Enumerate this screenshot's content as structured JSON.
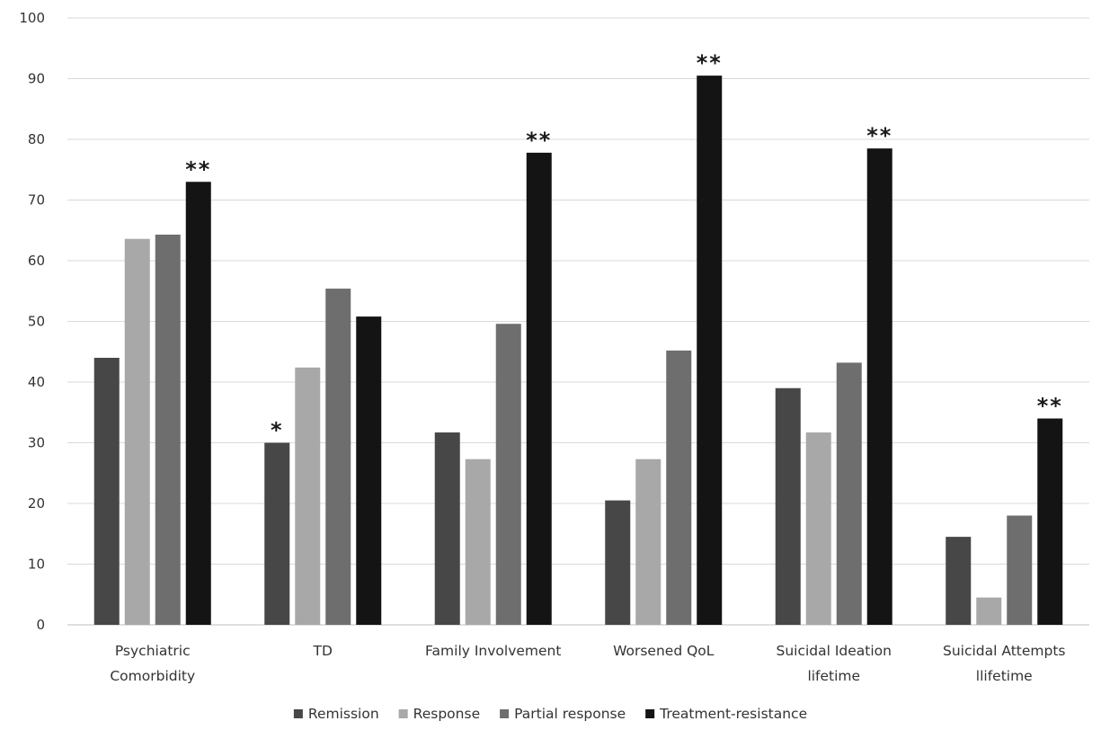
{
  "chart_data": {
    "type": "bar",
    "title": "",
    "xlabel": "",
    "ylabel": "",
    "ylim": [
      0,
      100
    ],
    "yticks": [
      0,
      10,
      20,
      30,
      40,
      50,
      60,
      70,
      80,
      90,
      100
    ],
    "grid": true,
    "legend_position": "bottom",
    "categories": [
      [
        "Psychiatric",
        "Comorbidity"
      ],
      [
        "TD"
      ],
      [
        "Family Involvement"
      ],
      [
        "Worsened QoL"
      ],
      [
        "Suicidal Ideation",
        "lifetime"
      ],
      [
        "Suicidal Attempts",
        "llifetime"
      ]
    ],
    "series": [
      {
        "name": "Remission",
        "color": "#474747",
        "values": [
          44,
          30,
          31.7,
          20.5,
          39,
          14.5
        ]
      },
      {
        "name": "Response",
        "color": "#a8a8a8",
        "values": [
          63.6,
          42.4,
          27.3,
          27.3,
          31.7,
          4.5
        ]
      },
      {
        "name": "Partial response",
        "color": "#6e6e6e",
        "values": [
          64.3,
          55.4,
          49.6,
          45.2,
          43.2,
          18
        ]
      },
      {
        "name": "Treatment-resistance",
        "color": "#141414",
        "values": [
          73,
          50.8,
          77.8,
          90.5,
          78.5,
          34
        ]
      }
    ],
    "annotations": [
      {
        "category_index": 0,
        "series_index": 3,
        "text": "**"
      },
      {
        "category_index": 1,
        "series_index": 0,
        "text": "*"
      },
      {
        "category_index": 2,
        "series_index": 3,
        "text": "**"
      },
      {
        "category_index": 3,
        "series_index": 3,
        "text": "**"
      },
      {
        "category_index": 4,
        "series_index": 3,
        "text": "**"
      },
      {
        "category_index": 5,
        "series_index": 3,
        "text": "**"
      }
    ]
  }
}
